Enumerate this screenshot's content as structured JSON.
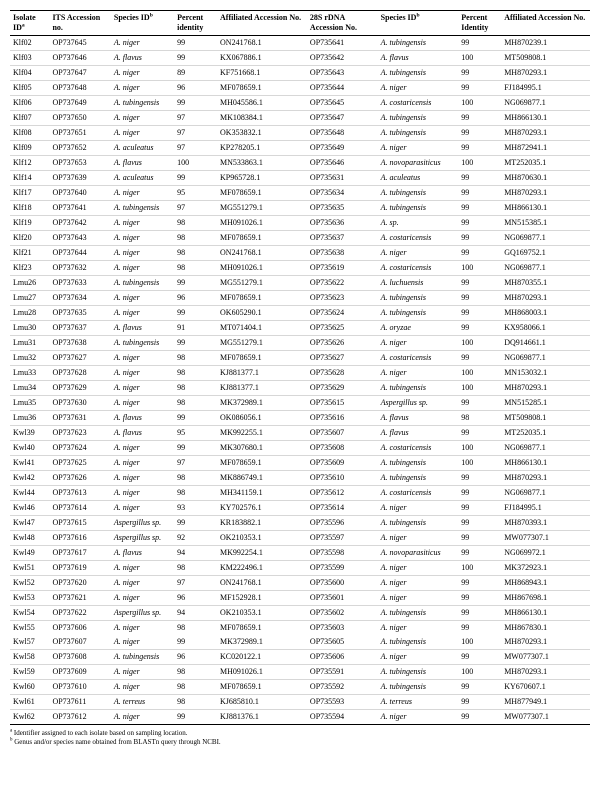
{
  "columns": [
    {
      "label": "Isolate ID",
      "sup": "a"
    },
    {
      "label": "ITS Accession no."
    },
    {
      "label": "Species ID",
      "sup": "b"
    },
    {
      "label": "Percent identity"
    },
    {
      "label": "Affiliated Accession No."
    },
    {
      "label": "28S rDNA Accession No."
    },
    {
      "label": "Species ID",
      "sup": "b"
    },
    {
      "label": "Percent Identity"
    },
    {
      "label": "Affiliated Accession No."
    }
  ],
  "rows": [
    {
      "c": [
        "Klf02",
        "OP737645",
        "A. niger",
        "99",
        "ON241768.1",
        "OP735641",
        "A. tubingensis",
        "99",
        "MH870239.1"
      ]
    },
    {
      "c": [
        "Klf03",
        "OP737646",
        "A. flavus",
        "99",
        "KX067886.1",
        "OP735642",
        "A. flavus",
        "100",
        "MT509808.1"
      ]
    },
    {
      "c": [
        "Klf04",
        "OP737647",
        "A. niger",
        "89",
        "KF751668.1",
        "OP735643",
        "A. tubingensis",
        "99",
        "MH870293.1"
      ]
    },
    {
      "c": [
        "Klf05",
        "OP737648",
        "A. niger",
        "96",
        "MF078659.1",
        "OP735644",
        "A. niger",
        "99",
        "FJ184995.1"
      ]
    },
    {
      "c": [
        "Klf06",
        "OP737649",
        "A. tubingensis",
        "99",
        "MH045586.1",
        "OP735645",
        "A. costaricensis",
        "100",
        "NG069877.1"
      ]
    },
    {
      "c": [
        "Klf07",
        "OP737650",
        "A. niger",
        "97",
        "MK108384.1",
        "OP735647",
        "A. tubingensis",
        "99",
        "MH866130.1"
      ],
      "sep": true
    },
    {
      "c": [
        "Klf08",
        "OP737651",
        "A. niger",
        "97",
        "OK353832.1",
        "OP735648",
        "A. tubingensis",
        "99",
        "MH870293.1"
      ]
    },
    {
      "c": [
        "Klf09",
        "OP737652",
        "A. aculeatus",
        "97",
        "KP278205.1",
        "OP735649",
        "A. niger",
        "99",
        "MH872941.1"
      ]
    },
    {
      "c": [
        "Klf12",
        "OP737653",
        "A. flavus",
        "100",
        "MN533863.1",
        "OP735646",
        "A. novoparasiticus",
        "100",
        "MT252035.1"
      ]
    },
    {
      "c": [
        "Klf14",
        "OP737639",
        "A. aculeatus",
        "99",
        "KP965728.1",
        "OP735631",
        "A. aculeatus",
        "99",
        "MH870630.1"
      ],
      "sep": true
    },
    {
      "c": [
        "Klf17",
        "OP737640",
        "A. niger",
        "95",
        "MF078659.1",
        "OP735634",
        "A. tubingensis",
        "99",
        "MH870293.1"
      ]
    },
    {
      "c": [
        "Klf18",
        "OP737641",
        "A. tubingensis",
        "97",
        "MG551279.1",
        "OP735635",
        "A. tubingensis",
        "99",
        "MH866130.1"
      ]
    },
    {
      "c": [
        "Klf19",
        "OP737642",
        "A. niger",
        "98",
        "MH091026.1",
        "OP735636",
        "A. sp.",
        "99",
        "MN515385.1"
      ],
      "sep": true
    },
    {
      "c": [
        "Klf20",
        "OP737643",
        "A. niger",
        "98",
        "MF078659.1",
        "OP735637",
        "A. costaricensis",
        "99",
        "NG069877.1"
      ]
    },
    {
      "c": [
        "Klf21",
        "OP737644",
        "A. niger",
        "98",
        "ON241768.1",
        "OP735638",
        "A. niger",
        "99",
        "GQ169752.1"
      ]
    },
    {
      "c": [
        "Klf23",
        "OP737632",
        "A. niger",
        "98",
        "MH091026.1",
        "OP735619",
        "A. costaricensis",
        "100",
        "NG069877.1"
      ]
    },
    {
      "c": [
        "Lmu26",
        "OP737633",
        "A. tubingensis",
        "99",
        "MG551279.1",
        "OP735622",
        "A. luchuensis",
        "99",
        "MH870355.1"
      ]
    },
    {
      "c": [
        "Lmu27",
        "OP737634",
        "A. niger",
        "96",
        "MF078659.1",
        "OP735623",
        "A. tubingensis",
        "99",
        "MH870293.1"
      ],
      "sep": true
    },
    {
      "c": [
        "Lmu28",
        "OP737635",
        "A. niger",
        "99",
        "OK605290.1",
        "OP735624",
        "A. tubingensis",
        "99",
        "MH868003.1"
      ]
    },
    {
      "c": [
        "Lmu30",
        "OP737637",
        "A. flavus",
        "91",
        "MT071404.1",
        "OP735625",
        "A. oryzae",
        "99",
        "KX958066.1"
      ]
    },
    {
      "c": [
        "Lmu31",
        "OP737638",
        "A. tubingensis",
        "99",
        "MG551279.1",
        "OP735626",
        "A. niger",
        "100",
        "DQ914661.1"
      ]
    },
    {
      "c": [
        "Lmu32",
        "OP737627",
        "A. niger",
        "98",
        "MF078659.1",
        "OP735627",
        "A. costaricensis",
        "99",
        "NG069877.1"
      ],
      "sep": true
    },
    {
      "c": [
        "Lmu33",
        "OP737628",
        "A. niger",
        "98",
        "KJ881377.1",
        "OP735628",
        "A. niger",
        "100",
        "MN153032.1"
      ]
    },
    {
      "c": [
        "Lmu34",
        "OP737629",
        "A. niger",
        "98",
        "KJ881377.1",
        "OP735629",
        "A. tubingensis",
        "100",
        "MH870293.1"
      ]
    },
    {
      "c": [
        "Lmu35",
        "OP737630",
        "A. niger",
        "98",
        "MK372989.1",
        "OP735615",
        "Aspergillus sp.",
        "99",
        "MN515285.1"
      ]
    },
    {
      "c": [
        "Lmu36",
        "OP737631",
        "A. flavus",
        "99",
        "OK086056.1",
        "OP735616",
        "A. flavus",
        "98",
        "MT509808.1"
      ]
    },
    {
      "c": [
        "Kwl39",
        "OP737623",
        "A. flavus",
        "95",
        "MK992255.1",
        "OP735607",
        "A. flavus",
        "99",
        "MT252035.1"
      ]
    },
    {
      "c": [
        "Kwl40",
        "OP737624",
        "A. niger",
        "99",
        "MK307680.1",
        "OP735608",
        "A. costaricensis",
        "100",
        "NG069877.1"
      ]
    },
    {
      "c": [
        "Kwl41",
        "OP737625",
        "A. niger",
        "97",
        "MF078659.1",
        "OP735609",
        "A. tubingensis",
        "100",
        "MH866130.1"
      ]
    },
    {
      "c": [
        "Kwl42",
        "OP737626",
        "A. niger",
        "98",
        "MK886749.1",
        "OP735610",
        "A. tubingensis",
        "99",
        "MH870293.1"
      ]
    },
    {
      "c": [
        "Kwl44",
        "OP737613",
        "A. niger",
        "98",
        "MH341159.1",
        "OP735612",
        "A. costaricensis",
        "99",
        "NG069877.1"
      ]
    },
    {
      "c": [
        "Kwl46",
        "OP737614",
        "A. niger",
        "93",
        "KY702576.1",
        "OP735614",
        "A. niger",
        "99",
        "FJ184995.1"
      ]
    },
    {
      "c": [
        "Kwl47",
        "OP737615",
        "Aspergillus sp.",
        "99",
        "KR183882.1",
        "OP735596",
        "A. tubingensis",
        "99",
        "MH870393.1"
      ]
    },
    {
      "c": [
        "Kwl48",
        "OP737616",
        "Aspergillus sp.",
        "92",
        "OK210353.1",
        "OP735597",
        "A. niger",
        "99",
        "MW077307.1"
      ],
      "sep": true
    },
    {
      "c": [
        "Kwl49",
        "OP737617",
        "A. flavus",
        "94",
        "MK992254.1",
        "OP735598",
        "A. novoparasiticus",
        "99",
        "NG069972.1"
      ],
      "sep": true
    },
    {
      "c": [
        "Kwl51",
        "OP737619",
        "A. niger",
        "98",
        "KM222496.1",
        "OP735599",
        "A. niger",
        "100",
        "MK372923.1"
      ],
      "sep": true
    },
    {
      "c": [
        "Kwl52",
        "OP737620",
        "A. niger",
        "97",
        "ON241768.1",
        "OP735600",
        "A. niger",
        "99",
        "MH868943.1"
      ]
    },
    {
      "c": [
        "Kwl53",
        "OP737621",
        "A. niger",
        "96",
        "MF152928.1",
        "OP735601",
        "A. niger",
        "99",
        "MH867698.1"
      ]
    },
    {
      "c": [
        "Kwl54",
        "OP737622",
        "Aspergillus sp.",
        "94",
        "OK210353.1",
        "OP735602",
        "A. tubingensis",
        "99",
        "MH866130.1"
      ]
    },
    {
      "c": [
        "Kwl55",
        "OP737606",
        "A. niger",
        "98",
        "MF078659.1",
        "OP735603",
        "A. niger",
        "99",
        "MH867830.1"
      ],
      "sep": true,
      "nob": true
    },
    {
      "c": [
        "Kwl57",
        "OP737607",
        "A. niger",
        "99",
        "MK372989.1",
        "OP735605",
        "A. tubingensis",
        "100",
        "MH870293.1"
      ]
    },
    {
      "c": [
        "Kwl58",
        "OP737608",
        "A. tubingensis",
        "96",
        "KC020122.1",
        "OP735606",
        "A. niger",
        "99",
        "MW077307.1"
      ]
    },
    {
      "c": [
        "Kwl59",
        "OP737609",
        "A. niger",
        "98",
        "MH091026.1",
        "OP735591",
        "A. tubingensis",
        "100",
        "MH870293.1"
      ],
      "sep": true
    },
    {
      "c": [
        "Kwl60",
        "OP737610",
        "A. niger",
        "98",
        "MF078659.1",
        "OP735592",
        "A. tubingensis",
        "99",
        "KY670607.1"
      ]
    },
    {
      "c": [
        "Kwl61",
        "OP737611",
        "A. terreus",
        "98",
        "KJ685810.1",
        "OP735593",
        "A. terreus",
        "99",
        "MH877949.1"
      ]
    },
    {
      "c": [
        "Kwl62",
        "OP737612",
        "A. niger",
        "99",
        "KJ881376.1",
        "OP735594",
        "A. niger",
        "99",
        "MW077307.1"
      ]
    }
  ],
  "footnotes": [
    {
      "sup": "a",
      "text": " Identifier assigned to each isolate based on sampling location."
    },
    {
      "sup": "b",
      "text": " Genus and/or species name obtained from BLASTn query through NCBI."
    }
  ]
}
